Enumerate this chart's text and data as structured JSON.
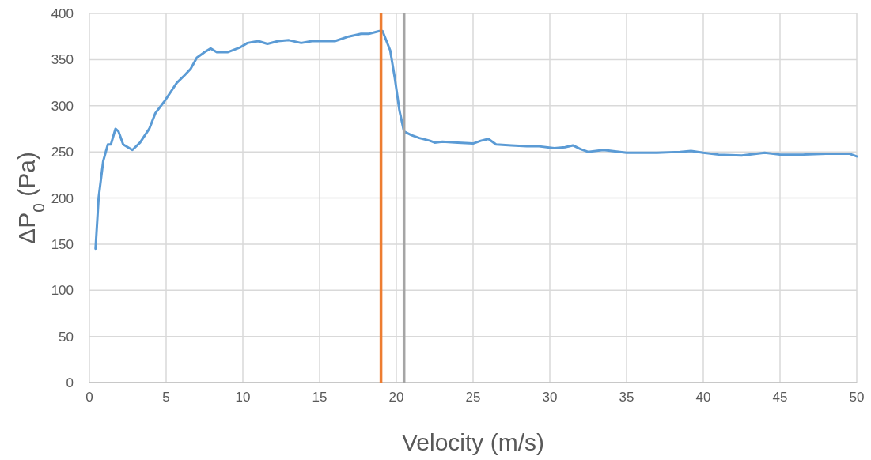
{
  "chart_data": {
    "type": "line",
    "xlabel": "Velocity (m/s)",
    "ylabel": "ΔP$_{0}$ (Pa)",
    "xlim": [
      0,
      50
    ],
    "xticks": [
      0,
      5,
      10,
      15,
      20,
      25,
      30,
      35,
      40,
      45,
      50
    ],
    "ylim": [
      0,
      400
    ],
    "yticks": [
      0,
      50,
      100,
      150,
      200,
      250,
      300,
      350,
      400
    ],
    "grid": true,
    "series": [
      {
        "color": "#5b9bd5",
        "x": [
          0.4,
          0.6,
          0.9,
          1.2,
          1.4,
          1.7,
          1.9,
          2.2,
          2.8,
          3.3,
          3.9,
          4.3,
          4.9,
          5.3,
          5.7,
          6.2,
          6.6,
          7.0,
          7.5,
          7.9,
          8.3,
          9.0,
          9.8,
          10.3,
          11.0,
          11.6,
          12.3,
          13.0,
          13.8,
          14.5,
          15.2,
          16.0,
          16.9,
          17.7,
          18.2,
          18.9,
          19.1,
          19.6,
          19.9,
          20.2,
          20.5,
          21.0,
          21.5,
          22.2,
          22.5,
          23.0,
          24.0,
          25.0,
          25.5,
          26.0,
          26.5,
          27.5,
          28.5,
          29.3,
          30.3,
          31.0,
          31.5,
          32.0,
          32.5,
          33.5,
          35.0,
          37.0,
          38.5,
          39.2,
          40.0,
          41.0,
          42.5,
          44.0,
          45.0,
          46.5,
          48.0,
          49.5,
          50.0
        ],
        "values": [
          145,
          200,
          240,
          258,
          258,
          275,
          272,
          258,
          252,
          260,
          275,
          292,
          305,
          315,
          325,
          333,
          340,
          352,
          358,
          362,
          358,
          358,
          363,
          368,
          370,
          367,
          370,
          371,
          368,
          370,
          370,
          370,
          375,
          378,
          378,
          381,
          381,
          360,
          330,
          295,
          272,
          268,
          265,
          262,
          260,
          261,
          260,
          259,
          262,
          264,
          258,
          257,
          256,
          256,
          254,
          255,
          257,
          253,
          250,
          252,
          249,
          249,
          250,
          251,
          249,
          247,
          246,
          249,
          247,
          247,
          248,
          248,
          245
        ]
      }
    ],
    "ref_lines": [
      {
        "axis": "x",
        "value": 19,
        "color": "#ed7d31"
      },
      {
        "axis": "x",
        "value": 20.5,
        "color": "#a5a5a5"
      }
    ]
  }
}
